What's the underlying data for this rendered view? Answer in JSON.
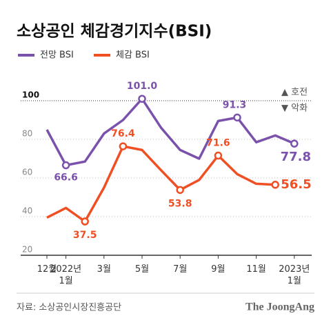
{
  "chart_data": {
    "type": "line",
    "title": "소상공인 체감경기지수(BSI)",
    "categories": [
      "12월",
      "2022년\n1월",
      null,
      "3월",
      null,
      "5월",
      null,
      "7월",
      null,
      "9월",
      null,
      "11월",
      null,
      "2023년\n1월"
    ],
    "series": [
      {
        "name": "전망 BSI",
        "color": "#7b52ab",
        "values": [
          85,
          66.6,
          68.5,
          83,
          90,
          101.0,
          86,
          74.5,
          70,
          89.5,
          91.3,
          78.5,
          82,
          77.8
        ],
        "value_labels": [
          null,
          "66.6",
          null,
          null,
          null,
          "101.0",
          null,
          null,
          null,
          null,
          "91.3",
          null,
          null,
          "77.8"
        ]
      },
      {
        "name": "체감 BSI",
        "color": "#f04e23",
        "values": [
          39.5,
          44.5,
          37.5,
          55,
          76.4,
          74.5,
          64,
          53.8,
          59,
          71.6,
          62,
          57,
          56.5,
          null
        ],
        "value_labels": [
          null,
          null,
          "37.5",
          null,
          "76.4",
          null,
          null,
          "53.8",
          null,
          "71.6",
          null,
          null,
          "56.5",
          null
        ]
      }
    ],
    "ylim": [
      20,
      110
    ],
    "yticks": [
      20,
      40,
      60,
      80,
      100
    ],
    "grid": true,
    "annotations": [
      "▲ 호전",
      "▼ 악화"
    ],
    "source": "자료: 소상공인시장진흥공단",
    "brand": "The JoongAng"
  }
}
